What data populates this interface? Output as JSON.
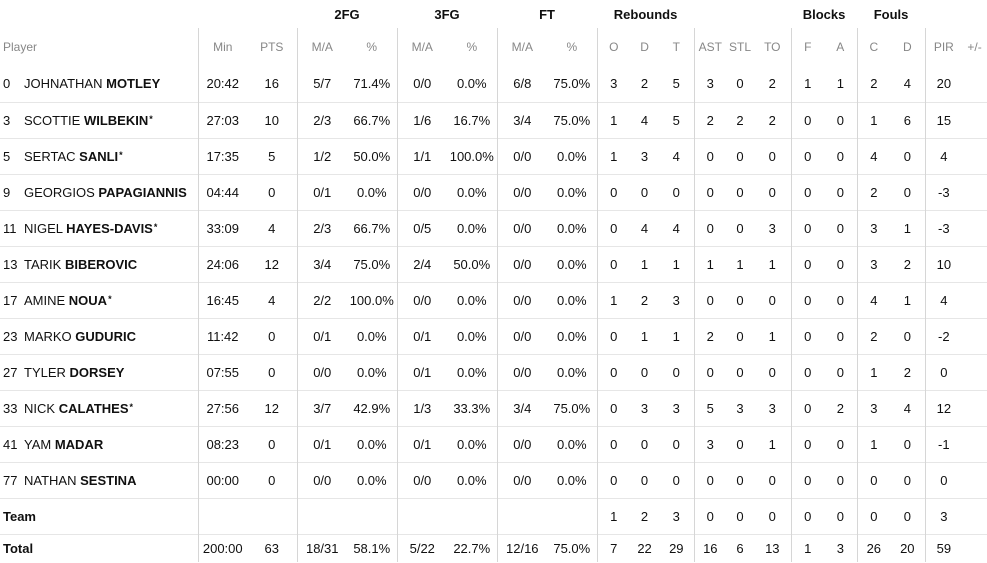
{
  "starter_mark": "*",
  "groups": {
    "fg2": "2FG",
    "fg3": "3FG",
    "ft": "FT",
    "rebounds": "Rebounds",
    "blocks": "Blocks",
    "fouls": "Fouls"
  },
  "columns": {
    "player": "Player",
    "min": "Min",
    "pts": "PTS",
    "ma": "M/A",
    "pct": "%",
    "reb_o": "O",
    "reb_d": "D",
    "reb_t": "T",
    "ast": "AST",
    "stl": "STL",
    "to": "TO",
    "blk_f": "F",
    "blk_a": "A",
    "foul_c": "C",
    "foul_d": "D",
    "pir": "PIR",
    "plus_minus": "+/-"
  },
  "players": [
    {
      "number": "0",
      "first": "JOHNATHAN",
      "last": "MOTLEY",
      "starter": false,
      "min": "20:42",
      "pts": "16",
      "fg2_ma": "5/7",
      "fg2_pct": "71.4%",
      "fg3_ma": "0/0",
      "fg3_pct": "0.0%",
      "ft_ma": "6/8",
      "ft_pct": "75.0%",
      "reb_o": "3",
      "reb_d": "2",
      "reb_t": "5",
      "ast": "3",
      "stl": "0",
      "to": "2",
      "blk_f": "1",
      "blk_a": "1",
      "foul_c": "2",
      "foul_d": "4",
      "pir": "20",
      "pm": ""
    },
    {
      "number": "3",
      "first": "SCOTTIE",
      "last": "WILBEKIN",
      "starter": true,
      "min": "27:03",
      "pts": "10",
      "fg2_ma": "2/3",
      "fg2_pct": "66.7%",
      "fg3_ma": "1/6",
      "fg3_pct": "16.7%",
      "ft_ma": "3/4",
      "ft_pct": "75.0%",
      "reb_o": "1",
      "reb_d": "4",
      "reb_t": "5",
      "ast": "2",
      "stl": "2",
      "to": "2",
      "blk_f": "0",
      "blk_a": "0",
      "foul_c": "1",
      "foul_d": "6",
      "pir": "15",
      "pm": ""
    },
    {
      "number": "5",
      "first": "SERTAC",
      "last": "SANLI",
      "starter": true,
      "min": "17:35",
      "pts": "5",
      "fg2_ma": "1/2",
      "fg2_pct": "50.0%",
      "fg3_ma": "1/1",
      "fg3_pct": "100.0%",
      "ft_ma": "0/0",
      "ft_pct": "0.0%",
      "reb_o": "1",
      "reb_d": "3",
      "reb_t": "4",
      "ast": "0",
      "stl": "0",
      "to": "0",
      "blk_f": "0",
      "blk_a": "0",
      "foul_c": "4",
      "foul_d": "0",
      "pir": "4",
      "pm": ""
    },
    {
      "number": "9",
      "first": "GEORGIOS",
      "last": "PAPAGIANNIS",
      "starter": false,
      "min": "04:44",
      "pts": "0",
      "fg2_ma": "0/1",
      "fg2_pct": "0.0%",
      "fg3_ma": "0/0",
      "fg3_pct": "0.0%",
      "ft_ma": "0/0",
      "ft_pct": "0.0%",
      "reb_o": "0",
      "reb_d": "0",
      "reb_t": "0",
      "ast": "0",
      "stl": "0",
      "to": "0",
      "blk_f": "0",
      "blk_a": "0",
      "foul_c": "2",
      "foul_d": "0",
      "pir": "-3",
      "pm": ""
    },
    {
      "number": "11",
      "first": "NIGEL",
      "last": "HAYES-DAVIS",
      "starter": true,
      "min": "33:09",
      "pts": "4",
      "fg2_ma": "2/3",
      "fg2_pct": "66.7%",
      "fg3_ma": "0/5",
      "fg3_pct": "0.0%",
      "ft_ma": "0/0",
      "ft_pct": "0.0%",
      "reb_o": "0",
      "reb_d": "4",
      "reb_t": "4",
      "ast": "0",
      "stl": "0",
      "to": "3",
      "blk_f": "0",
      "blk_a": "0",
      "foul_c": "3",
      "foul_d": "1",
      "pir": "-3",
      "pm": ""
    },
    {
      "number": "13",
      "first": "TARIK",
      "last": "BIBEROVIC",
      "starter": false,
      "min": "24:06",
      "pts": "12",
      "fg2_ma": "3/4",
      "fg2_pct": "75.0%",
      "fg3_ma": "2/4",
      "fg3_pct": "50.0%",
      "ft_ma": "0/0",
      "ft_pct": "0.0%",
      "reb_o": "0",
      "reb_d": "1",
      "reb_t": "1",
      "ast": "1",
      "stl": "1",
      "to": "1",
      "blk_f": "0",
      "blk_a": "0",
      "foul_c": "3",
      "foul_d": "2",
      "pir": "10",
      "pm": ""
    },
    {
      "number": "17",
      "first": "AMINE",
      "last": "NOUA",
      "starter": true,
      "min": "16:45",
      "pts": "4",
      "fg2_ma": "2/2",
      "fg2_pct": "100.0%",
      "fg3_ma": "0/0",
      "fg3_pct": "0.0%",
      "ft_ma": "0/0",
      "ft_pct": "0.0%",
      "reb_o": "1",
      "reb_d": "2",
      "reb_t": "3",
      "ast": "0",
      "stl": "0",
      "to": "0",
      "blk_f": "0",
      "blk_a": "0",
      "foul_c": "4",
      "foul_d": "1",
      "pir": "4",
      "pm": ""
    },
    {
      "number": "23",
      "first": "MARKO",
      "last": "GUDURIC",
      "starter": false,
      "min": "11:42",
      "pts": "0",
      "fg2_ma": "0/1",
      "fg2_pct": "0.0%",
      "fg3_ma": "0/1",
      "fg3_pct": "0.0%",
      "ft_ma": "0/0",
      "ft_pct": "0.0%",
      "reb_o": "0",
      "reb_d": "1",
      "reb_t": "1",
      "ast": "2",
      "stl": "0",
      "to": "1",
      "blk_f": "0",
      "blk_a": "0",
      "foul_c": "2",
      "foul_d": "0",
      "pir": "-2",
      "pm": ""
    },
    {
      "number": "27",
      "first": "TYLER",
      "last": "DORSEY",
      "starter": false,
      "min": "07:55",
      "pts": "0",
      "fg2_ma": "0/0",
      "fg2_pct": "0.0%",
      "fg3_ma": "0/1",
      "fg3_pct": "0.0%",
      "ft_ma": "0/0",
      "ft_pct": "0.0%",
      "reb_o": "0",
      "reb_d": "0",
      "reb_t": "0",
      "ast": "0",
      "stl": "0",
      "to": "0",
      "blk_f": "0",
      "blk_a": "0",
      "foul_c": "1",
      "foul_d": "2",
      "pir": "0",
      "pm": ""
    },
    {
      "number": "33",
      "first": "NICK",
      "last": "CALATHES",
      "starter": true,
      "min": "27:56",
      "pts": "12",
      "fg2_ma": "3/7",
      "fg2_pct": "42.9%",
      "fg3_ma": "1/3",
      "fg3_pct": "33.3%",
      "ft_ma": "3/4",
      "ft_pct": "75.0%",
      "reb_o": "0",
      "reb_d": "3",
      "reb_t": "3",
      "ast": "5",
      "stl": "3",
      "to": "3",
      "blk_f": "0",
      "blk_a": "2",
      "foul_c": "3",
      "foul_d": "4",
      "pir": "12",
      "pm": ""
    },
    {
      "number": "41",
      "first": "YAM",
      "last": "MADAR",
      "starter": false,
      "min": "08:23",
      "pts": "0",
      "fg2_ma": "0/1",
      "fg2_pct": "0.0%",
      "fg3_ma": "0/1",
      "fg3_pct": "0.0%",
      "ft_ma": "0/0",
      "ft_pct": "0.0%",
      "reb_o": "0",
      "reb_d": "0",
      "reb_t": "0",
      "ast": "3",
      "stl": "0",
      "to": "1",
      "blk_f": "0",
      "blk_a": "0",
      "foul_c": "1",
      "foul_d": "0",
      "pir": "-1",
      "pm": ""
    },
    {
      "number": "77",
      "first": "NATHAN",
      "last": "SESTINA",
      "starter": false,
      "min": "00:00",
      "pts": "0",
      "fg2_ma": "0/0",
      "fg2_pct": "0.0%",
      "fg3_ma": "0/0",
      "fg3_pct": "0.0%",
      "ft_ma": "0/0",
      "ft_pct": "0.0%",
      "reb_o": "0",
      "reb_d": "0",
      "reb_t": "0",
      "ast": "0",
      "stl": "0",
      "to": "0",
      "blk_f": "0",
      "blk_a": "0",
      "foul_c": "0",
      "foul_d": "0",
      "pir": "0",
      "pm": ""
    }
  ],
  "team_row": {
    "label": "Team",
    "min": "",
    "pts": "",
    "fg2_ma": "",
    "fg2_pct": "",
    "fg3_ma": "",
    "fg3_pct": "",
    "ft_ma": "",
    "ft_pct": "",
    "reb_o": "1",
    "reb_d": "2",
    "reb_t": "3",
    "ast": "0",
    "stl": "0",
    "to": "0",
    "blk_f": "0",
    "blk_a": "0",
    "foul_c": "0",
    "foul_d": "0",
    "pir": "3",
    "pm": ""
  },
  "total_row": {
    "label": "Total",
    "min": "200:00",
    "pts": "63",
    "fg2_ma": "18/31",
    "fg2_pct": "58.1%",
    "fg3_ma": "5/22",
    "fg3_pct": "22.7%",
    "ft_ma": "12/16",
    "ft_pct": "75.0%",
    "reb_o": "7",
    "reb_d": "22",
    "reb_t": "29",
    "ast": "16",
    "stl": "6",
    "to": "13",
    "blk_f": "1",
    "blk_a": "3",
    "foul_c": "26",
    "foul_d": "20",
    "pir": "59",
    "pm": ""
  }
}
